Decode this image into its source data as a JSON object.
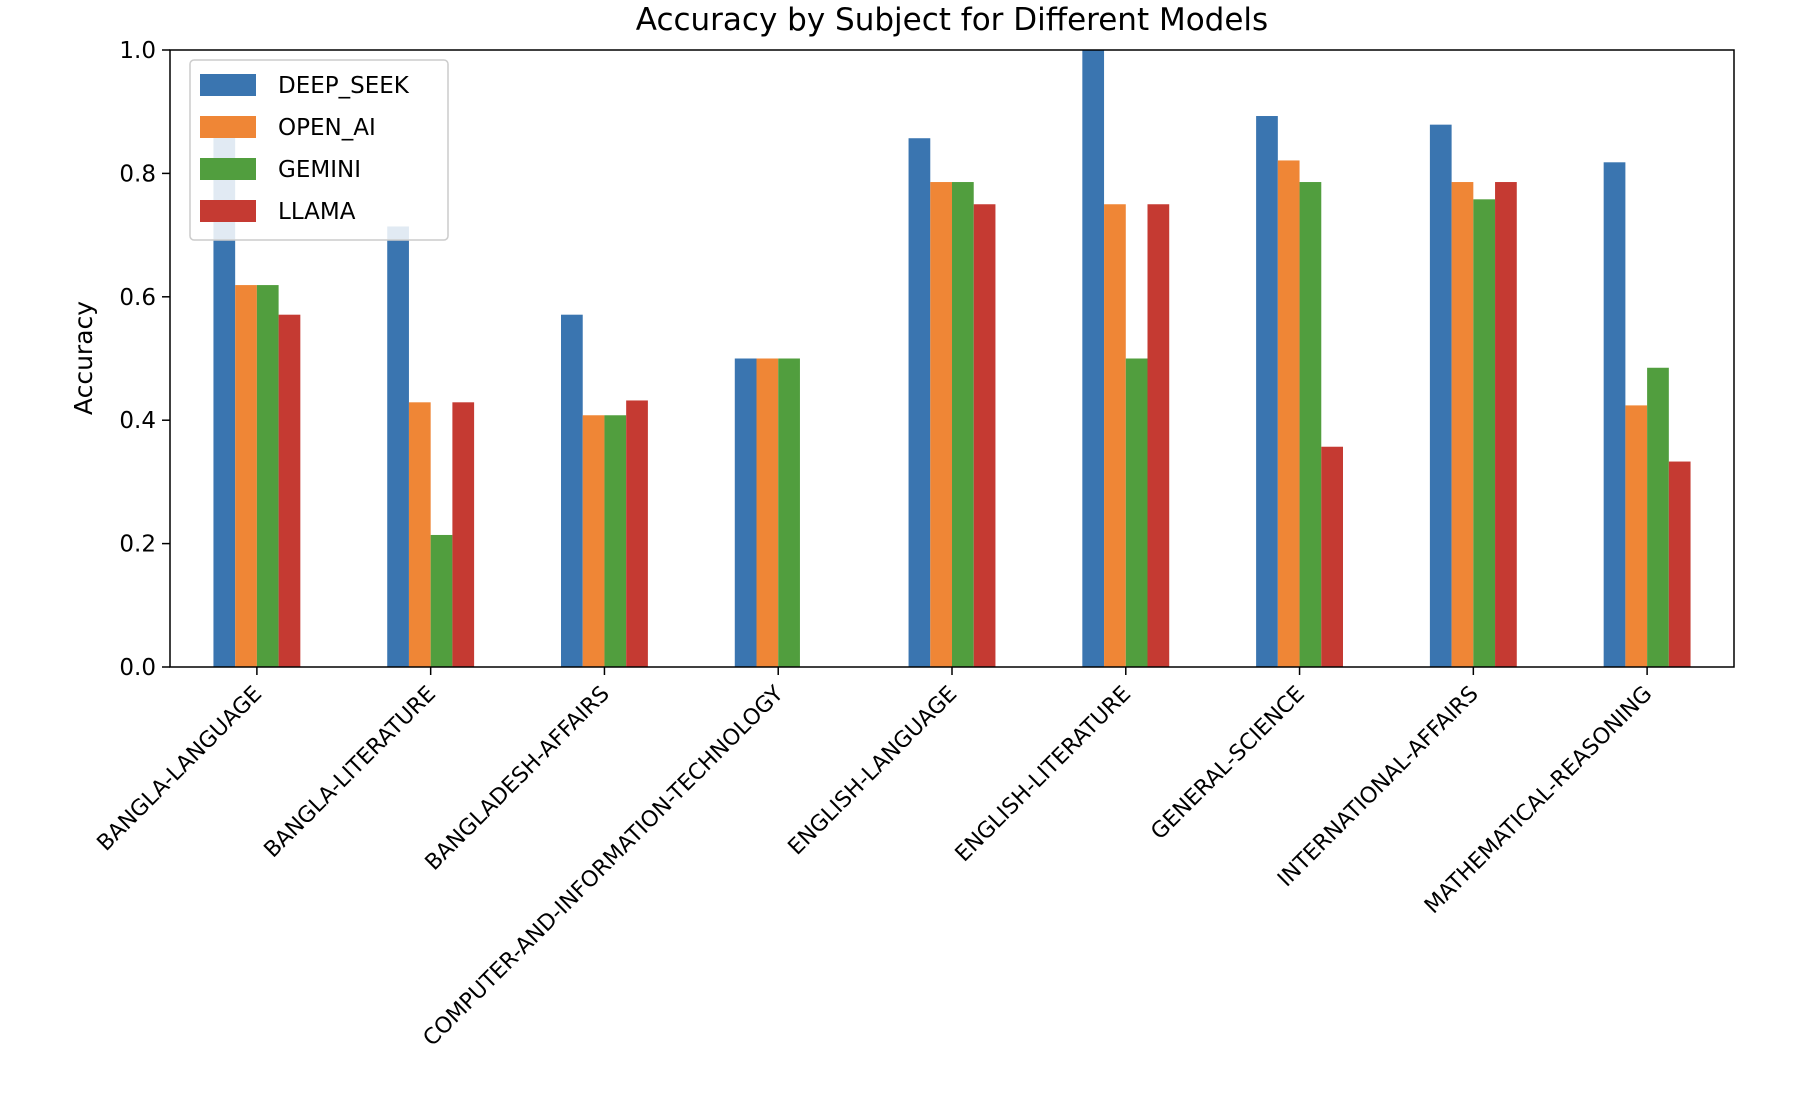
{
  "chart_data": {
    "type": "bar",
    "title": "Accuracy by Subject for Different Models",
    "xlabel": "",
    "ylabel": "Accuracy",
    "ylim": [
      0,
      1.0
    ],
    "yticks": [
      "0.0",
      "0.2",
      "0.4",
      "0.6",
      "0.8",
      "1.0"
    ],
    "grid": false,
    "legend_position": "top-left",
    "categories": [
      "BANGLA-LANGUAGE",
      "BANGLA-LITERATURE",
      "BANGLADESH-AFFAIRS",
      "COMPUTER-AND-INFORMATION-TECHNOLOGY",
      "ENGLISH-LANGUAGE",
      "ENGLISH-LITERATURE",
      "GENERAL-SCIENCE",
      "INTERNATIONAL-AFFAIRS",
      "MATHEMATICAL-REASONING"
    ],
    "series": [
      {
        "name": "DEEP_SEEK",
        "color": "#3a75b0",
        "values": [
          0.86,
          0.714,
          0.571,
          0.5,
          0.857,
          1.0,
          0.893,
          0.879,
          0.818
        ]
      },
      {
        "name": "OPEN_AI",
        "color": "#ef8636",
        "values": [
          0.619,
          0.429,
          0.408,
          0.5,
          0.786,
          0.75,
          0.821,
          0.786,
          0.424
        ]
      },
      {
        "name": "GEMINI",
        "color": "#519e3e",
        "values": [
          0.619,
          0.214,
          0.408,
          0.5,
          0.786,
          0.5,
          0.786,
          0.758,
          0.485
        ]
      },
      {
        "name": "LLAMA",
        "color": "#c53a32",
        "values": [
          0.571,
          0.429,
          0.432,
          0,
          0.75,
          0.75,
          0.357,
          0.786,
          0.333
        ]
      }
    ]
  }
}
